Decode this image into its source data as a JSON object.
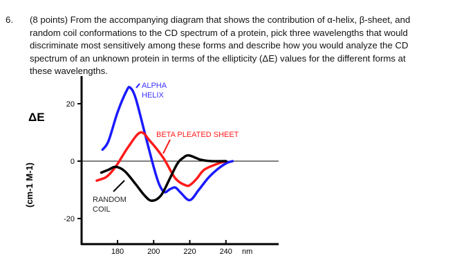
{
  "question": {
    "number": "6.",
    "lines": [
      "(8 points) From the accompanying diagram that shows the contribution of  α-helix, β-sheet, and",
      "random coil conformations to the CD spectrum of a protein, pick three wavelengths that would",
      "discriminate most sensitively among these forms and describe how you would analyze the CD",
      "spectrum of an unknown protein in terms of the ellipticity (ΔE) values for the different forms at",
      "these wavelengths."
    ]
  },
  "chart_data": {
    "type": "line",
    "ylabel_symbol": "ΔE",
    "ylabel_units": "(cm-1 M-1)",
    "xunit": "nm",
    "xticks": [
      180,
      200,
      220,
      240
    ],
    "yticks": [
      20,
      0,
      -20
    ],
    "xlim": [
      160,
      270
    ],
    "ylim": [
      -28,
      30
    ],
    "grid": false,
    "series": [
      {
        "name": "ALPHA HELIX",
        "color": "#1a1aff",
        "label_lines": [
          "ALPHA",
          "HELIX"
        ],
        "points": [
          [
            171.7,
            4
          ],
          [
            175,
            7
          ],
          [
            180,
            17
          ],
          [
            185,
            24.5
          ],
          [
            187,
            25.6
          ],
          [
            190,
            22
          ],
          [
            195,
            10
          ],
          [
            200,
            -2
          ],
          [
            203,
            -8
          ],
          [
            206,
            -10.8
          ],
          [
            209,
            -9.8
          ],
          [
            212,
            -9.2
          ],
          [
            215,
            -11
          ],
          [
            220,
            -13.6
          ],
          [
            225,
            -10
          ],
          [
            230,
            -6
          ],
          [
            235,
            -3
          ],
          [
            240,
            -0.8
          ],
          [
            243.7,
            0
          ]
        ]
      },
      {
        "name": "BETA PLEATED SHEET",
        "color": "#ff1a1a",
        "label_lines": [
          "BETA PLEATED SHEET"
        ],
        "points": [
          [
            168.5,
            -6.8
          ],
          [
            173.6,
            -5.6
          ],
          [
            177,
            -3.5
          ],
          [
            180,
            -1
          ],
          [
            186,
            5
          ],
          [
            192.7,
            10
          ],
          [
            198,
            7
          ],
          [
            205.5,
            1
          ],
          [
            212,
            -6
          ],
          [
            218,
            -8.5
          ],
          [
            220.8,
            -8
          ],
          [
            224,
            -6
          ],
          [
            228,
            -3
          ],
          [
            235,
            -1
          ],
          [
            240,
            0
          ]
        ]
      },
      {
        "name": "RANDOM COIL",
        "color": "#000000",
        "label_lines": [
          "RANDOM",
          "COIL"
        ],
        "points": [
          [
            171,
            -4
          ],
          [
            175,
            -3
          ],
          [
            179,
            -2
          ],
          [
            184,
            -3.5
          ],
          [
            190,
            -8
          ],
          [
            195,
            -12
          ],
          [
            199,
            -13.8
          ],
          [
            204,
            -12
          ],
          [
            209,
            -6
          ],
          [
            213,
            -1
          ],
          [
            216,
            1
          ],
          [
            219.5,
            2
          ],
          [
            226,
            0.5
          ],
          [
            232,
            0
          ],
          [
            240,
            0
          ]
        ]
      }
    ]
  }
}
